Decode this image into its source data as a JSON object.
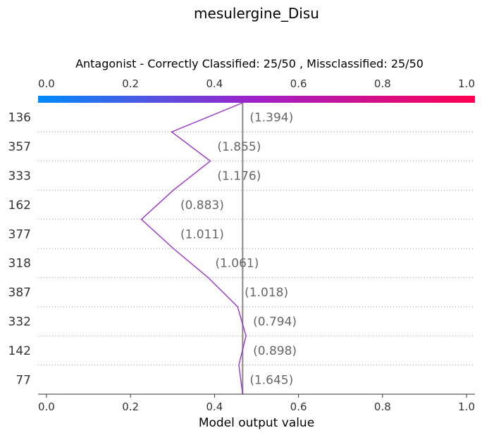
{
  "chart_data": {
    "type": "line",
    "title": "mesulergine_Disu",
    "subtitle": "Antagonist - Correctly Classified: 25/50 , Missclassified: 25/50",
    "xlabel": "Model output value",
    "xlim": [
      -0.02,
      1.02
    ],
    "xticks": [
      "0.0",
      "0.2",
      "0.4",
      "0.6",
      "0.8",
      "1.0"
    ],
    "base_value": 0.467,
    "colorbar": {
      "low_color": "#008bfb",
      "mid_color": "#a020c8",
      "high_color": "#ff0052"
    },
    "line_color": "#9b32c8",
    "grid": "horizontal dotted",
    "rows": [
      {
        "label": "136",
        "value_text": "(1.394)"
      },
      {
        "label": "357",
        "value_text": "(1.855)"
      },
      {
        "label": "333",
        "value_text": "(1.176)"
      },
      {
        "label": "162",
        "value_text": "(0.883)"
      },
      {
        "label": "377",
        "value_text": "(1.011)"
      },
      {
        "label": "318",
        "value_text": "(1.061)"
      },
      {
        "label": "387",
        "value_text": "(1.018)"
      },
      {
        "label": "332",
        "value_text": "(0.794)"
      },
      {
        "label": "142",
        "value_text": "(0.898)"
      },
      {
        "label": "77",
        "value_text": "(1.645)"
      }
    ],
    "path_x": [
      0.467,
      0.298,
      0.39,
      0.302,
      0.226,
      0.302,
      0.385,
      0.455,
      0.475,
      0.458,
      0.467
    ]
  }
}
